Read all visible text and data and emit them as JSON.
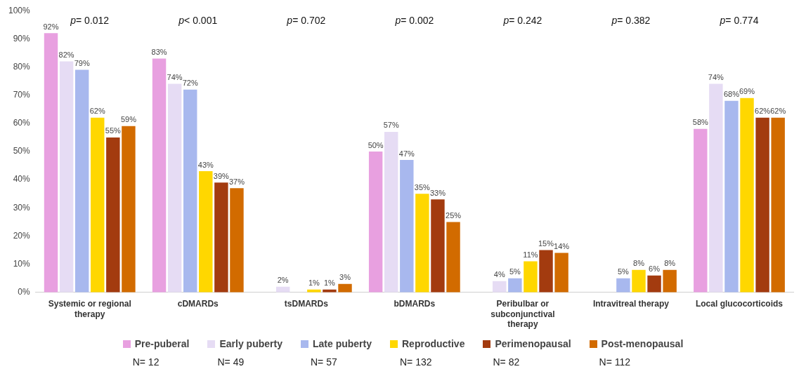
{
  "chart_data": {
    "type": "bar",
    "categories": [
      "Systemic or regional therapy",
      "cDMARDs",
      "tsDMARDs",
      "bDMARDs",
      "Peribulbar or subconjunctival therapy",
      "Intravitreal therapy",
      "Local glucocorticoids"
    ],
    "series": [
      {
        "name": "Pre-puberal",
        "color": "#e8a0e0",
        "values": [
          92,
          83,
          null,
          50,
          null,
          null,
          58
        ],
        "value_labels": [
          "92%",
          "83%",
          null,
          "50%",
          null,
          null,
          "58%"
        ]
      },
      {
        "name": "Early puberty",
        "color": "#e6dcf4",
        "values": [
          82,
          74,
          2,
          57,
          4,
          null,
          74
        ],
        "value_labels": [
          "82%",
          "74%",
          "2%",
          "57%",
          "4%",
          null,
          "74%"
        ]
      },
      {
        "name": "Late puberty",
        "color": "#a8b8ee",
        "values": [
          79,
          72,
          null,
          47,
          5,
          5,
          68
        ],
        "value_labels": [
          "79%",
          "72%",
          null,
          "47%",
          "5%",
          "5%",
          "68%"
        ]
      },
      {
        "name": "Reproductive",
        "color": "#ffd700",
        "values": [
          62,
          43,
          1,
          35,
          11,
          8,
          69
        ],
        "value_labels": [
          "62%",
          "43%",
          "1%",
          "35%",
          "11%",
          "8%",
          "69%"
        ]
      },
      {
        "name": "Perimenopausal",
        "color": "#a33b0f",
        "values": [
          55,
          39,
          1,
          33,
          15,
          6,
          62
        ],
        "value_labels": [
          "55%",
          "39%",
          "1%",
          "33%",
          "15%",
          "6%",
          "62%"
        ]
      },
      {
        "name": "Post-menopausal",
        "color": "#d26b00",
        "values": [
          59,
          37,
          3,
          25,
          14,
          8,
          62
        ],
        "value_labels": [
          "59%",
          "37%",
          "3%",
          "25%",
          "14%",
          "8%",
          "62%"
        ]
      }
    ],
    "ylim": [
      0,
      100
    ],
    "yticks": [
      {
        "value": 0,
        "label": "0%"
      },
      {
        "value": 10,
        "label": "10%"
      },
      {
        "value": 20,
        "label": "20%"
      },
      {
        "value": 30,
        "label": "30%"
      },
      {
        "value": 40,
        "label": "40%"
      },
      {
        "value": 50,
        "label": "50%"
      },
      {
        "value": 60,
        "label": "60%"
      },
      {
        "value": 70,
        "label": "70%"
      },
      {
        "value": 80,
        "label": "80%"
      },
      {
        "value": 90,
        "label": "90%"
      },
      {
        "value": 100,
        "label": "100%"
      }
    ],
    "grid": false,
    "legend": "bottom",
    "annotations": [
      "p= 0.012",
      "p< 0.001",
      "p= 0.702",
      "p= 0.002",
      "p= 0.242",
      "p= 0.382",
      "p= 0.774",
      "N= 12",
      "N= 49",
      "N= 57",
      "N= 132",
      "N= 82",
      "N= 112"
    ]
  }
}
